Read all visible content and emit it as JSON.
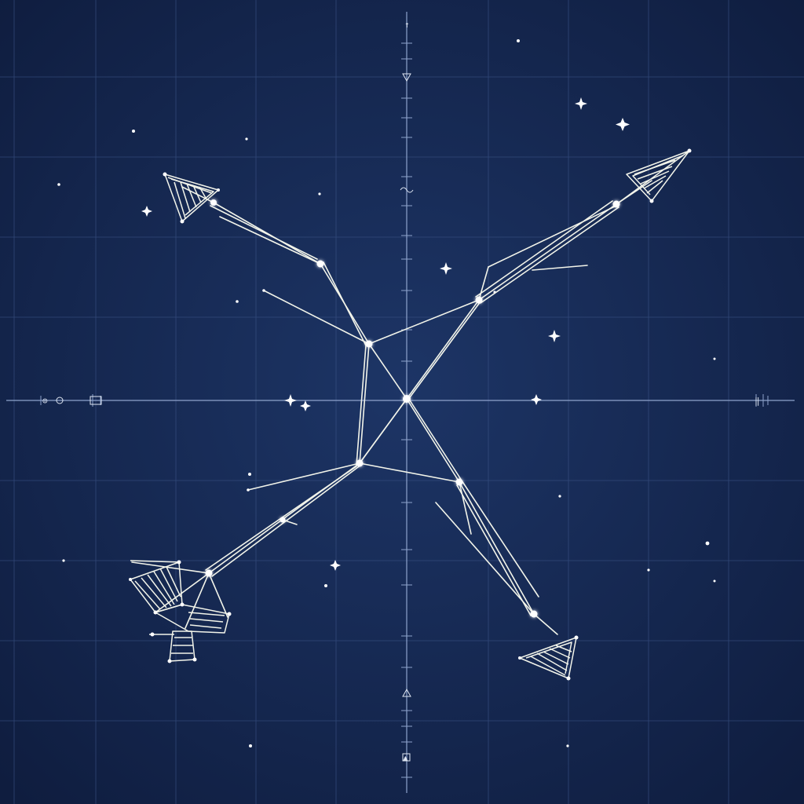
{
  "figure": {
    "title": "",
    "description_visible_text": false
  },
  "axes": {
    "top_tick_label": "↑",
    "left_tick_label": "⊙",
    "right_tick_label": "‖",
    "bottom_tick_label": "▲"
  },
  "colors": {
    "background": "#14244a",
    "grid": "#3a5184",
    "axis": "#8ea3cc",
    "lines": "#f2f4ea",
    "stars": "#ffffff"
  },
  "constellation": {
    "star_count": 11,
    "arrowhead_count": 3,
    "has_feathered_tail": true
  }
}
